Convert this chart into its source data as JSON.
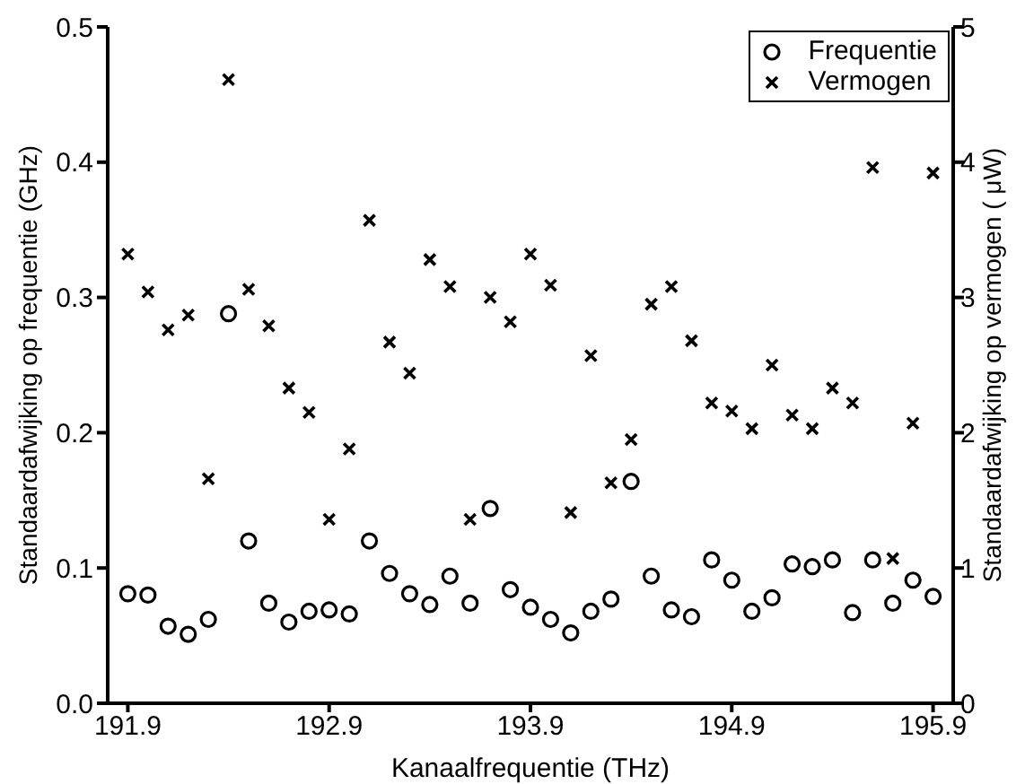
{
  "chart_data": {
    "type": "scatter",
    "xlabel": "Kanaalfrequentie (THz)",
    "ylabel": "Standaardafwijking op frequentie (GHz)",
    "y2label": "Standaardafwijking op vermogen ( μW)",
    "x": [
      191.9,
      192.0,
      192.1,
      192.2,
      192.3,
      192.4,
      192.5,
      192.6,
      192.7,
      192.8,
      192.9,
      193.0,
      193.1,
      193.2,
      193.3,
      193.4,
      193.5,
      193.6,
      193.7,
      193.8,
      193.9,
      194.0,
      194.1,
      194.2,
      194.3,
      194.4,
      194.5,
      194.6,
      194.7,
      194.8,
      194.9,
      195.0,
      195.1,
      195.2,
      195.3,
      195.4,
      195.5,
      195.6,
      195.7,
      195.8,
      195.9
    ],
    "series": [
      {
        "name": "Frequentie",
        "color": "#000000",
        "marker": "circle",
        "values": [
          0.081,
          0.08,
          0.057,
          0.051,
          0.062,
          0.288,
          0.12,
          0.074,
          0.06,
          0.068,
          0.069,
          0.066,
          0.12,
          0.096,
          0.081,
          0.073,
          0.094,
          0.074,
          0.144,
          0.084,
          0.071,
          0.062,
          0.052,
          0.068,
          0.077,
          0.164,
          0.094,
          0.069,
          0.064,
          0.106,
          0.091,
          0.068,
          0.078,
          0.103,
          0.101,
          0.106,
          0.067,
          0.106,
          0.074,
          0.091,
          0.079
        ]
      },
      {
        "name": "Vermogen",
        "color": "#000000",
        "marker": "cross",
        "axis": "y2",
        "values": [
          3.32,
          3.04,
          2.76,
          2.87,
          1.66,
          4.61,
          3.06,
          2.79,
          2.33,
          2.15,
          1.36,
          1.88,
          3.57,
          2.67,
          2.44,
          3.28,
          3.08,
          1.36,
          3.0,
          2.82,
          3.32,
          3.09,
          1.41,
          2.57,
          1.63,
          1.95,
          2.95,
          3.08,
          2.68,
          2.22,
          2.16,
          2.03,
          2.5,
          2.13,
          2.03,
          2.33,
          2.22,
          3.96,
          1.07,
          2.07,
          3.92
        ]
      }
    ],
    "xlim": [
      191.8,
      196.0
    ],
    "xticks": [
      191.9,
      192.9,
      193.9,
      194.9,
      195.9
    ],
    "ylim": [
      0,
      0.5
    ],
    "yticks": [
      {
        "value": 0,
        "label": "0.0"
      },
      0.1,
      0.2,
      0.3,
      0.4,
      0.5
    ],
    "y2lim": [
      0,
      5
    ],
    "y2ticks": [
      0,
      1,
      2,
      3,
      4,
      5
    ],
    "legend": "top right",
    "grid": false
  }
}
